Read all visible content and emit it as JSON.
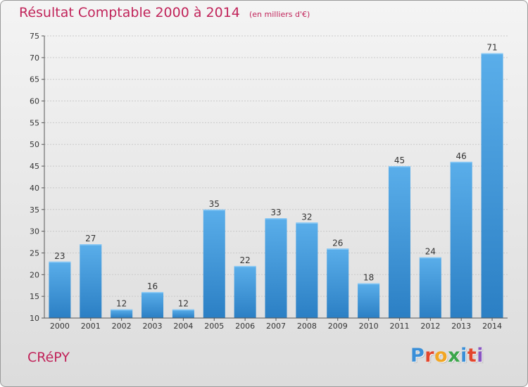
{
  "chart_data": {
    "type": "bar",
    "title": "Résultat Comptable 2000 à 2014",
    "subtitle": "(en milliers d'€)",
    "categories": [
      "2000",
      "2001",
      "2002",
      "2003",
      "2004",
      "2005",
      "2006",
      "2007",
      "2008",
      "2009",
      "2010",
      "2011",
      "2012",
      "2013",
      "2014"
    ],
    "values": [
      23,
      27,
      12,
      16,
      12,
      35,
      22,
      33,
      32,
      26,
      18,
      45,
      24,
      46,
      71
    ],
    "ylim": [
      10,
      75
    ],
    "yticks": [
      10,
      15,
      20,
      25,
      30,
      35,
      40,
      45,
      50,
      55,
      60,
      65,
      70,
      75
    ],
    "xlabel": "",
    "ylabel": "",
    "grid": true
  },
  "footer": {
    "town": "CRéPY",
    "logo": "Proxiti"
  },
  "colors": {
    "title": "#c1245a",
    "bar_light": "#5aaeea",
    "bar_dark": "#2b7fc4"
  }
}
